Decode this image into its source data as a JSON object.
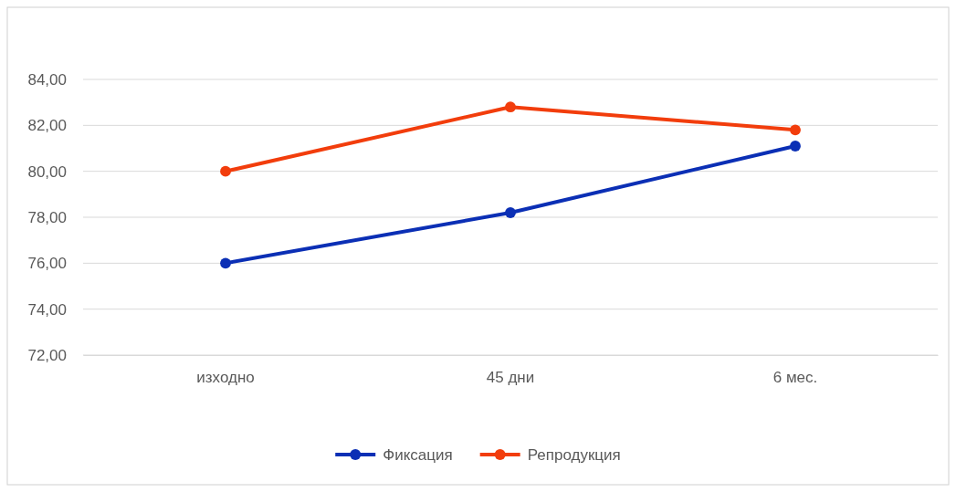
{
  "chart_data": {
    "type": "line",
    "categories": [
      "изходно",
      "45 дни",
      "6 мес."
    ],
    "series": [
      {
        "name": "Фиксация",
        "color": "#0b2fb5",
        "values": [
          76.0,
          78.2,
          81.1
        ]
      },
      {
        "name": "Репродукция",
        "color": "#f23d0c",
        "values": [
          80.0,
          82.8,
          81.8
        ]
      }
    ],
    "ylim": [
      72,
      84
    ],
    "yticks": [
      {
        "value": 72,
        "label": "72,00"
      },
      {
        "value": 74,
        "label": "74,00"
      },
      {
        "value": 76,
        "label": "76,00"
      },
      {
        "value": 78,
        "label": "78,00"
      },
      {
        "value": 80,
        "label": "80,00"
      },
      {
        "value": 82,
        "label": "82,00"
      },
      {
        "value": 84,
        "label": "84,00"
      }
    ],
    "grid": "y",
    "legend": "bottom",
    "marker": "circle",
    "line_style": "solid"
  }
}
